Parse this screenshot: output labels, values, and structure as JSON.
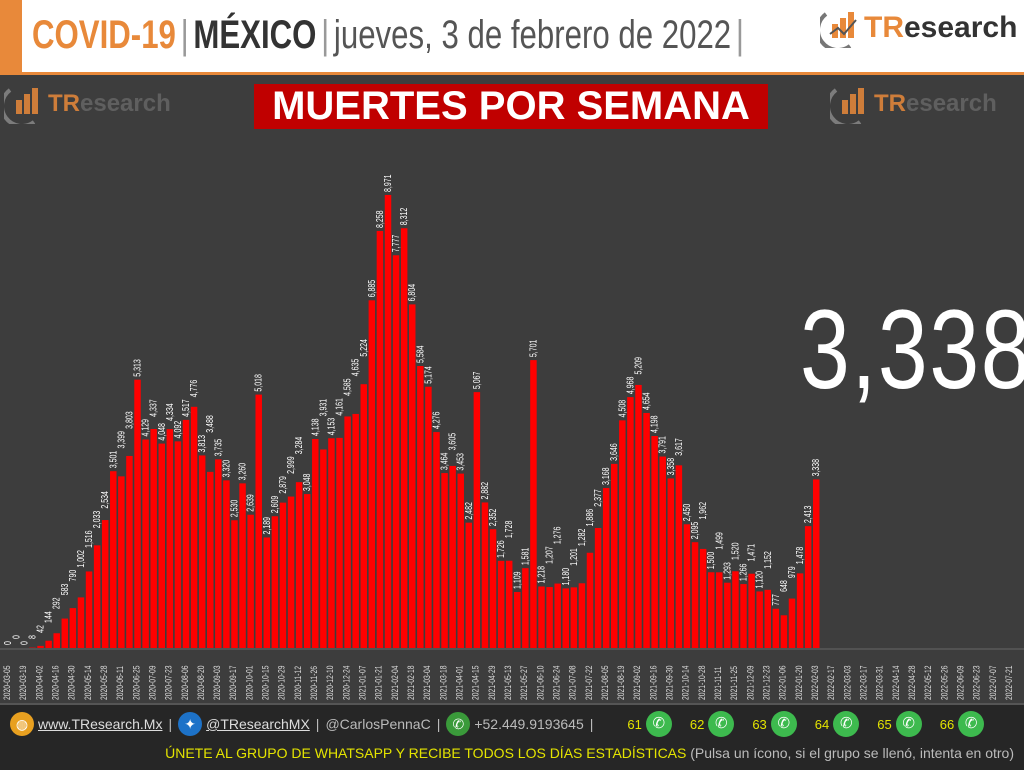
{
  "header": {
    "covid": "COVID-19",
    "country": "MÉXICO",
    "date": "jueves, 3 de febrero de 2022",
    "sep": "|",
    "logo_tr": "TR",
    "logo_es": "esearch"
  },
  "colors": {
    "bar": "#ff0000",
    "accent": "#e8893a",
    "background": "#3d3d3d",
    "title_bg": "#c00000"
  },
  "latest_value": "3,338",
  "chart_data": {
    "type": "bar",
    "title": "MUERTES POR SEMANA",
    "xlabel": "",
    "ylabel": "",
    "grid": false,
    "ylim": [
      0,
      10000
    ],
    "first_week": "2020-03-05",
    "x_ticks": [
      "2020-03-05",
      "2020-03-19",
      "2020-04-02",
      "2020-04-16",
      "2020-04-30",
      "2020-05-14",
      "2020-05-28",
      "2020-06-11",
      "2020-06-25",
      "2020-07-09",
      "2020-07-23",
      "2020-08-06",
      "2020-08-20",
      "2020-09-03",
      "2020-09-17",
      "2020-10-01",
      "2020-10-15",
      "2020-10-29",
      "2020-11-12",
      "2020-11-26",
      "2020-12-10",
      "2020-12-24",
      "2021-01-07",
      "2021-01-21",
      "2021-02-04",
      "2021-02-18",
      "2021-03-04",
      "2021-03-18",
      "2021-04-01",
      "2021-04-15",
      "2021-04-29",
      "2021-05-13",
      "2021-05-27",
      "2021-06-10",
      "2021-06-24",
      "2021-07-08",
      "2021-07-22",
      "2021-08-05",
      "2021-08-19",
      "2021-09-02",
      "2021-09-16",
      "2021-09-30",
      "2021-10-14",
      "2021-10-28",
      "2021-11-11",
      "2021-11-25",
      "2021-12-09",
      "2021-12-23",
      "2022-01-06",
      "2022-01-20",
      "2022-02-03",
      "2022-02-17",
      "2022-03-03",
      "2022-03-17",
      "2022-03-31",
      "2022-04-14",
      "2022-04-28",
      "2022-05-12",
      "2022-05-26",
      "2022-06-09",
      "2022-06-23",
      "2022-07-07",
      "2022-07-21"
    ],
    "values": [
      0,
      0,
      0,
      8,
      42,
      144,
      292,
      583,
      790,
      1002,
      1516,
      2033,
      2534,
      3501,
      3399,
      3803,
      5313,
      4129,
      4337,
      4048,
      4334,
      4092,
      4517,
      4776,
      3813,
      3488,
      3735,
      3320,
      2530,
      3260,
      2639,
      5018,
      2189,
      2609,
      2879,
      2999,
      3284,
      3048,
      4138,
      3931,
      4153,
      4161,
      4585,
      4635,
      5224,
      6885,
      8258,
      8971,
      7777,
      8312,
      6804,
      5584,
      5174,
      4276,
      3464,
      3605,
      3453,
      2482,
      5067,
      2882,
      2352,
      1726,
      1728,
      1109,
      1581,
      5701,
      1218,
      1207,
      1276,
      1180,
      1201,
      1282,
      1886,
      2377,
      3168,
      3646,
      4508,
      4968,
      5209,
      4654,
      4198,
      3791,
      3358,
      3617,
      2450,
      2095,
      1962,
      1500,
      1499,
      1293,
      1520,
      1266,
      1471,
      1120,
      1152,
      777,
      648,
      979,
      1478,
      2413,
      3338
    ]
  },
  "footer": {
    "website": "www.TResearch.Mx",
    "twitter": "@TResearchMX",
    "twitter2": "@CarlosPennaC",
    "phone": "+52.449.9193645",
    "sep": "|",
    "groups": [
      "61",
      "62",
      "63",
      "64",
      "65",
      "66"
    ],
    "cta": "ÚNETE AL GRUPO DE WHATSAPP Y RECIBE TODOS LOS DÍAS ESTADÍSTICAS",
    "note": "(Pulsa un ícono, si el grupo se llenó, intenta en otro)"
  }
}
